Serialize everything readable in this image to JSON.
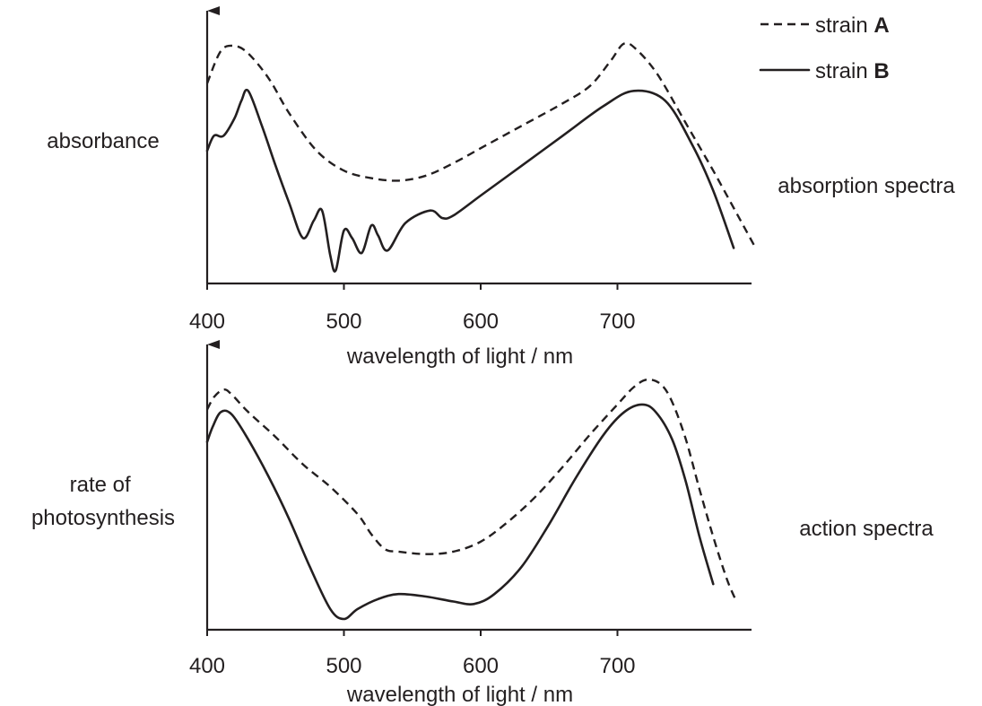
{
  "legend": {
    "series_a_prefix": "strain ",
    "series_a_letter": "A",
    "series_b_prefix": "strain ",
    "series_b_letter": "B"
  },
  "chart_data": [
    {
      "type": "line",
      "title": "absorption spectra",
      "ylabel": "absorbance",
      "xlabel": "wavelength of light / nm",
      "xlim": [
        400,
        800
      ],
      "ylim": [
        0,
        1
      ],
      "xticks": [
        400,
        500,
        600,
        700
      ],
      "grid": false,
      "legend": "top-right",
      "series": [
        {
          "name": "strain A",
          "style": "dashed",
          "x": [
            400,
            410,
            420,
            430,
            445,
            460,
            480,
            500,
            520,
            540,
            560,
            580,
            600,
            630,
            660,
            680,
            695,
            705,
            715,
            730,
            750,
            770,
            790,
            800
          ],
          "y": [
            0.77,
            0.9,
            0.92,
            0.89,
            0.79,
            0.65,
            0.5,
            0.42,
            0.39,
            0.38,
            0.4,
            0.45,
            0.51,
            0.6,
            0.69,
            0.76,
            0.86,
            0.93,
            0.9,
            0.8,
            0.61,
            0.42,
            0.22,
            0.12
          ]
        },
        {
          "name": "strain B",
          "style": "solid",
          "x": [
            400,
            405,
            412,
            420,
            425,
            430,
            440,
            450,
            460,
            470,
            478,
            484,
            490,
            494,
            500,
            506,
            513,
            520,
            525,
            532,
            545,
            563,
            572,
            580,
            600,
            630,
            660,
            690,
            712,
            735,
            755,
            770,
            785
          ],
          "y": [
            0.5,
            0.56,
            0.56,
            0.63,
            0.7,
            0.74,
            0.6,
            0.44,
            0.29,
            0.15,
            0.22,
            0.26,
            0.08,
            0.02,
            0.18,
            0.15,
            0.09,
            0.2,
            0.16,
            0.1,
            0.21,
            0.26,
            0.23,
            0.24,
            0.32,
            0.44,
            0.56,
            0.68,
            0.74,
            0.7,
            0.52,
            0.34,
            0.11
          ]
        }
      ]
    },
    {
      "type": "line",
      "title": "action spectra",
      "ylabel": "rate of photosynthesis",
      "xlabel": "wavelength of light / nm",
      "xlim": [
        400,
        800
      ],
      "ylim": [
        0,
        1
      ],
      "xticks": [
        400,
        500,
        600,
        700
      ],
      "grid": false,
      "series": [
        {
          "name": "strain A",
          "style": "dashed",
          "x": [
            400,
            405,
            412,
            418,
            430,
            450,
            470,
            490,
            510,
            520,
            530,
            540,
            560,
            580,
            600,
            620,
            640,
            660,
            680,
            700,
            712,
            722,
            732,
            740,
            750,
            760,
            770,
            780,
            787
          ],
          "y": [
            0.84,
            0.89,
            0.92,
            0.9,
            0.83,
            0.73,
            0.62,
            0.53,
            0.42,
            0.34,
            0.28,
            0.27,
            0.26,
            0.27,
            0.31,
            0.39,
            0.49,
            0.61,
            0.74,
            0.86,
            0.93,
            0.96,
            0.94,
            0.87,
            0.72,
            0.52,
            0.33,
            0.16,
            0.07
          ]
        },
        {
          "name": "strain B",
          "style": "solid",
          "x": [
            400,
            404,
            410,
            418,
            430,
            445,
            460,
            475,
            490,
            500,
            510,
            525,
            540,
            560,
            580,
            595,
            610,
            630,
            650,
            670,
            690,
            705,
            718,
            728,
            740,
            750,
            760,
            770
          ],
          "y": [
            0.71,
            0.77,
            0.83,
            0.82,
            0.72,
            0.57,
            0.4,
            0.21,
            0.04,
            0.0,
            0.04,
            0.08,
            0.1,
            0.09,
            0.07,
            0.06,
            0.1,
            0.21,
            0.38,
            0.57,
            0.74,
            0.83,
            0.86,
            0.83,
            0.72,
            0.55,
            0.33,
            0.14
          ]
        }
      ]
    }
  ]
}
